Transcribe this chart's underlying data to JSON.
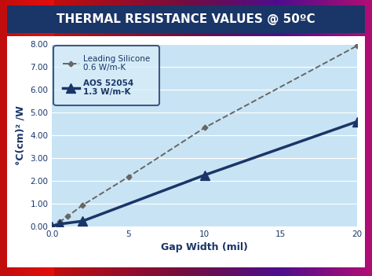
{
  "title": "THERMAL RESISTANCE VALUES @ 50ºC",
  "xlabel": "Gap Width (mil)",
  "ylabel": "°C(cm)² /W",
  "xlim": [
    0,
    20
  ],
  "ylim": [
    0.0,
    8.0
  ],
  "xticks": [
    0.0,
    5,
    10,
    15,
    20
  ],
  "xtick_labels": [
    "0.0",
    "5",
    "10",
    "15",
    "20"
  ],
  "yticks": [
    0.0,
    1.0,
    2.0,
    3.0,
    4.0,
    5.0,
    6.0,
    7.0,
    8.0
  ],
  "ytick_labels": [
    "0.00",
    "1.00",
    "2.00",
    "3.00",
    "4.00",
    "5.00",
    "6.00",
    "7.00",
    "8.00"
  ],
  "sil_x": [
    0.0,
    0.5,
    1.0,
    2.0,
    5.0,
    10.0,
    20.0
  ],
  "sil_y": [
    0.0,
    0.2,
    0.43,
    0.93,
    2.17,
    4.33,
    7.93
  ],
  "aos_x": [
    0.0,
    0.5,
    2.0,
    10.0,
    20.0
  ],
  "aos_y": [
    0.0,
    0.1,
    0.23,
    2.25,
    4.6
  ],
  "silicone_color": "#666666",
  "aos_color": "#1a3567",
  "bg_plot": "#c8e4f4",
  "title_color": "#ffffff",
  "title_bg": "#1a3567",
  "outer_bg_left": "#cc2200",
  "outer_bg_right": "#2200aa",
  "legend_border_color": "#1a3567",
  "legend_bg": "#d8eef8",
  "tick_label_color": "#1a3567",
  "axis_label_color": "#1a3567",
  "legend_label1": "Leading Silicone\n0.6 W/m-K",
  "legend_label2": "AOS 52054\n1.3 W/m-K",
  "fig_width": 4.74,
  "fig_height": 3.51,
  "dpi": 100
}
